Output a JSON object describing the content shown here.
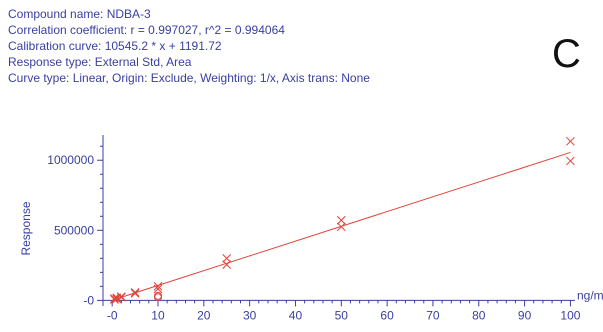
{
  "info": {
    "line1": "Compound name: NDBA-3",
    "line2": "Correlation coefficient: r = 0.997027, r^2 = 0.994064",
    "line3": "Calibration curve: 10545.2 * x + 1191.72",
    "line4": "Response type: External Std, Area",
    "line5": "Curve type: Linear, Origin: Exclude, Weighting: 1/x, Axis trans: None"
  },
  "panel_letter": "C",
  "colors": {
    "axis": "#3a3fa0",
    "series": "#e0433a",
    "text": "#3a3fa0"
  },
  "chart_data": {
    "type": "scatter",
    "xlabel": "ng/mL",
    "ylabel": "Response",
    "xlim": [
      -2,
      101
    ],
    "ylim": [
      -40000,
      1180000
    ],
    "x_ticks": [
      0,
      10,
      20,
      30,
      40,
      50,
      60,
      70,
      80,
      90,
      100
    ],
    "x_tick_labels": [
      "-0",
      "10",
      "20",
      "30",
      "40",
      "50",
      "60",
      "70",
      "80",
      "90",
      "100"
    ],
    "y_ticks": [
      0,
      500000,
      1000000
    ],
    "y_tick_labels": [
      "-0",
      "500000",
      "1000000"
    ],
    "fit_line": {
      "slope": 10545.2,
      "intercept": 1191.72,
      "x_range": [
        0,
        100
      ]
    },
    "points": [
      {
        "x": 0.5,
        "y": 6000,
        "marker": "x"
      },
      {
        "x": 0.5,
        "y": 14000,
        "marker": "x"
      },
      {
        "x": 1,
        "y": 11000,
        "marker": "x"
      },
      {
        "x": 1,
        "y": 19000,
        "marker": "x"
      },
      {
        "x": 2,
        "y": 22000,
        "marker": "x"
      },
      {
        "x": 2,
        "y": 27000,
        "marker": "x"
      },
      {
        "x": 5,
        "y": 50000,
        "marker": "x"
      },
      {
        "x": 5,
        "y": 57000,
        "marker": "x"
      },
      {
        "x": 10,
        "y": 82000,
        "marker": "x"
      },
      {
        "x": 10,
        "y": 101000,
        "marker": "x"
      },
      {
        "x": 10,
        "y": 32000,
        "marker": "o"
      },
      {
        "x": 10,
        "y": 22000,
        "marker": "o"
      },
      {
        "x": 25,
        "y": 255000,
        "marker": "x"
      },
      {
        "x": 25,
        "y": 300000,
        "marker": "x"
      },
      {
        "x": 50,
        "y": 525000,
        "marker": "x"
      },
      {
        "x": 50,
        "y": 572000,
        "marker": "x"
      },
      {
        "x": 100,
        "y": 995000,
        "marker": "x"
      },
      {
        "x": 100,
        "y": 1135000,
        "marker": "x"
      }
    ]
  }
}
